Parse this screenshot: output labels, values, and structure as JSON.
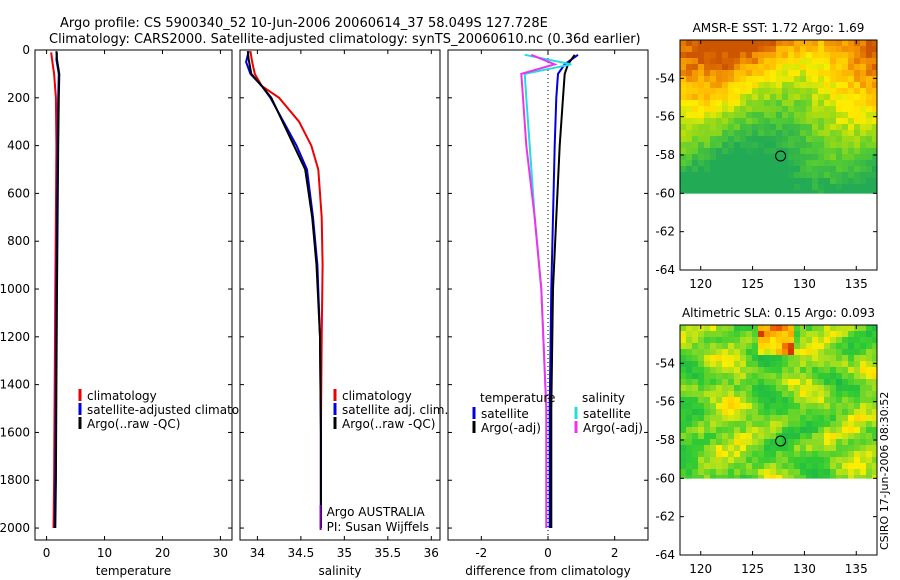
{
  "header": {
    "line1": "Argo profile: CS 5900340_52 10-Jun-2006 20060614_37 58.049S 127.728E",
    "line2": "Climatology: CARS2000. Satellite-adjusted climatology: synTS_20060610.nc (0.36d earlier)"
  },
  "colors": {
    "red": "#ee0000",
    "blue": "#0000dd",
    "black": "#000000",
    "cyan": "#22dddd",
    "magenta": "#ee33ee"
  },
  "chart_data": [
    {
      "type": "line",
      "xlabel": "temperature",
      "ylabel": "",
      "xlim": [
        -2,
        32
      ],
      "ylim": [
        2050,
        0
      ],
      "xticks": [
        0,
        10,
        20,
        30
      ],
      "yticks": [
        0,
        200,
        400,
        600,
        800,
        1000,
        1200,
        1400,
        1600,
        1800,
        2000
      ],
      "legend_position": "center",
      "series": [
        {
          "name": "climatology",
          "color": "red",
          "x": [
            0.8,
            1.0,
            1.3,
            1.6,
            1.7,
            1.6,
            1.5,
            1.4,
            1.3,
            1.2
          ],
          "y": [
            10,
            50,
            100,
            200,
            400,
            700,
            1000,
            1400,
            1800,
            2000
          ]
        },
        {
          "name": "satellite-adjusted climatology",
          "color": "blue",
          "x": [
            1.8,
            1.7,
            2.1,
            2.0,
            1.9,
            1.8,
            1.7,
            1.6,
            1.5,
            1.4
          ],
          "y": [
            10,
            40,
            100,
            200,
            400,
            700,
            1000,
            1400,
            1800,
            2000
          ]
        },
        {
          "name": "Argo(..raw -QC)",
          "color": "black",
          "x": [
            1.7,
            1.8,
            2.2,
            2.1,
            2.0,
            1.9,
            1.8,
            1.7,
            1.6,
            1.5
          ],
          "y": [
            5,
            40,
            100,
            200,
            400,
            700,
            1000,
            1400,
            1800,
            2000
          ]
        }
      ]
    },
    {
      "type": "line",
      "xlabel": "salinity",
      "ylabel": "",
      "xlim": [
        33.8,
        36.1
      ],
      "ylim": [
        2050,
        0
      ],
      "xticks": [
        34,
        34.5,
        35,
        35.5,
        36
      ],
      "yticks": [
        0,
        200,
        400,
        600,
        800,
        1000,
        1200,
        1400,
        1600,
        1800,
        2000
      ],
      "legend_position": "center",
      "annotations": [
        "Argo AUSTRALIA",
        "PI: Susan Wijffels"
      ],
      "series": [
        {
          "name": "climatology",
          "color": "red",
          "x": [
            33.92,
            33.94,
            33.97,
            34.05,
            34.25,
            34.48,
            34.62,
            34.7,
            34.74,
            34.75,
            34.74,
            34.73,
            34.73
          ],
          "y": [
            5,
            50,
            100,
            150,
            200,
            300,
            400,
            500,
            700,
            900,
            1200,
            1600,
            2000
          ]
        },
        {
          "name": "satellite adj. clim.",
          "color": "blue",
          "x": [
            33.9,
            33.87,
            33.92,
            34.05,
            34.15,
            34.3,
            34.45,
            34.57,
            34.64,
            34.69,
            34.72,
            34.73,
            34.73
          ],
          "y": [
            5,
            50,
            100,
            150,
            200,
            300,
            400,
            500,
            700,
            900,
            1200,
            1600,
            2000
          ]
        },
        {
          "name": "Argo(..raw -QC)",
          "color": "black",
          "x": [
            33.89,
            33.9,
            33.93,
            34.05,
            34.16,
            34.29,
            34.42,
            34.55,
            34.63,
            34.68,
            34.72,
            34.73,
            34.73
          ],
          "y": [
            5,
            40,
            100,
            150,
            200,
            300,
            400,
            500,
            700,
            900,
            1200,
            1600,
            2000
          ]
        }
      ]
    },
    {
      "type": "line",
      "xlabel": "difference from climatology",
      "ylabel": "",
      "xlim": [
        -3,
        3
      ],
      "ylim": [
        2050,
        0
      ],
      "xticks": [
        -2,
        0,
        2
      ],
      "yticks": [
        0,
        200,
        400,
        600,
        800,
        1000,
        1200,
        1400,
        1600,
        1800,
        2000
      ],
      "legend_groups": [
        "temperature",
        "salinity"
      ],
      "series": [
        {
          "name": "satellite",
          "group": "temperature",
          "color": "blue",
          "x": [
            0.9,
            0.5,
            0.3,
            0.25,
            0.2,
            0.15,
            0.1,
            0.05,
            0.05
          ],
          "y": [
            20,
            60,
            100,
            200,
            400,
            700,
            1000,
            1500,
            2000
          ]
        },
        {
          "name": "Argo(-adj)",
          "group": "temperature",
          "color": "black",
          "x": [
            0.8,
            0.6,
            0.5,
            0.45,
            0.35,
            0.25,
            0.15,
            0.1,
            0.1
          ],
          "y": [
            20,
            60,
            100,
            200,
            400,
            700,
            1000,
            1500,
            2000
          ]
        },
        {
          "name": "satellite",
          "group": "salinity",
          "color": "cyan",
          "x": [
            -0.7,
            0.7,
            -0.7,
            -0.65,
            -0.55,
            -0.4,
            -0.2,
            -0.05,
            -0.05
          ],
          "y": [
            20,
            60,
            100,
            200,
            400,
            700,
            1000,
            1500,
            2000
          ]
        },
        {
          "name": "Argo(-adj)",
          "group": "salinity",
          "color": "magenta",
          "x": [
            -0.5,
            0.2,
            -0.8,
            -0.75,
            -0.65,
            -0.4,
            -0.2,
            -0.05,
            -0.05
          ],
          "y": [
            20,
            60,
            100,
            200,
            400,
            700,
            1000,
            1500,
            2000
          ]
        }
      ]
    },
    {
      "type": "heatmap",
      "title": "AMSR-E SST: 1.72 Argo: 1.69",
      "xlim": [
        118,
        137
      ],
      "ylim": [
        -64,
        -52
      ],
      "xticks": [
        120,
        125,
        130,
        135
      ],
      "yticks": [
        -54,
        -56,
        -58,
        -60,
        -62,
        -64
      ],
      "marker": {
        "x": 127.7,
        "y": -58.05
      },
      "data_extent_y": [
        -60,
        -52
      ]
    },
    {
      "type": "heatmap",
      "title": "Altimetric SLA: 0.15 Argo: 0.093",
      "xlim": [
        118,
        137
      ],
      "ylim": [
        -64,
        -52
      ],
      "xticks": [
        120,
        125,
        130,
        135
      ],
      "yticks": [
        -54,
        -56,
        -58,
        -60,
        -62,
        -64
      ],
      "marker": {
        "x": 127.7,
        "y": -58.05
      },
      "data_extent_y": [
        -60,
        -52
      ]
    }
  ],
  "footer_vertical": "CSIRO 17-Jun-2006 08:30:52"
}
